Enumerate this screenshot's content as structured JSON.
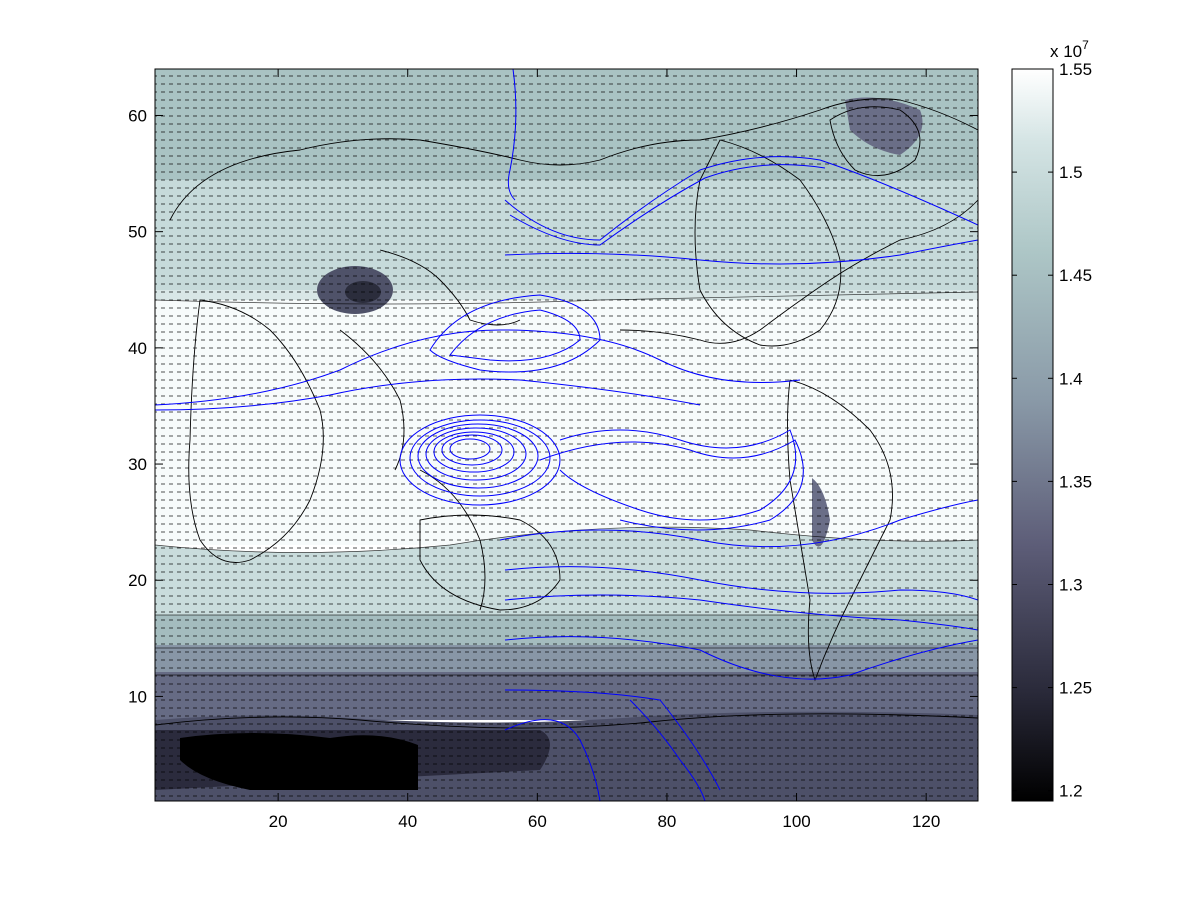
{
  "chart_data": {
    "type": "contour",
    "title": "",
    "xlabel": "",
    "ylabel": "",
    "xlim": [
      1,
      128
    ],
    "ylim": [
      1,
      64
    ],
    "x_ticks": [
      "20",
      "40",
      "60",
      "80",
      "100",
      "120"
    ],
    "y_ticks": [
      "10",
      "20",
      "30",
      "40",
      "50",
      "60"
    ],
    "x_tick_values": [
      20,
      40,
      60,
      80,
      100,
      120
    ],
    "y_tick_values": [
      10,
      20,
      30,
      40,
      50,
      60
    ],
    "colorbar": {
      "range": [
        1.195,
        1.55
      ],
      "ticks": [
        "1.2",
        "1.25",
        "1.3",
        "1.35",
        "1.4",
        "1.45",
        "1.5",
        "1.55"
      ],
      "tick_values": [
        1.2,
        1.25,
        1.3,
        1.35,
        1.4,
        1.45,
        1.5,
        1.55
      ],
      "exponent_base": "x 10",
      "exponent_power": "7",
      "colormap": "bone"
    },
    "overlays": {
      "quiver": true,
      "streamlines_color": "#0000ff",
      "coastlines_color": "#000000"
    }
  }
}
